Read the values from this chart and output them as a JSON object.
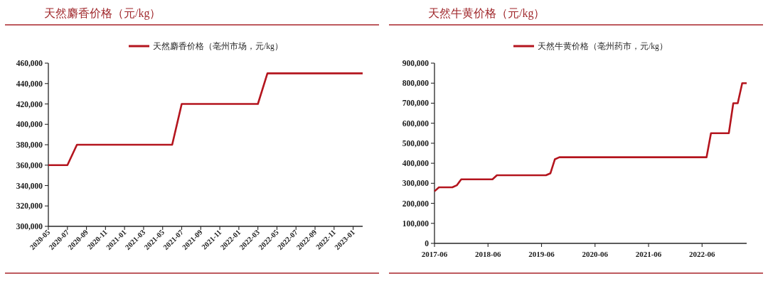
{
  "chart_data": [
    {
      "type": "line",
      "title": "天然麝香价格（元/kg）",
      "legend": "top",
      "x": [
        "2020-05",
        "2020-07",
        "2020-08",
        "2021-06",
        "2021-07",
        "2022-03",
        "2022-04",
        "2023-02"
      ],
      "series": [
        {
          "name": "天然麝香价格（亳州市场，元/kg）",
          "color": "#b4151e",
          "values": [
            360000,
            360000,
            380000,
            380000,
            420000,
            420000,
            450000,
            450000
          ]
        }
      ],
      "xlim": [
        "2020-05",
        "2023-02"
      ],
      "xticks": [
        "2020-05",
        "2020-07",
        "2020-09",
        "2020-11",
        "2021-01",
        "2021-03",
        "2021-05",
        "2021-07",
        "2021-09",
        "2021-11",
        "2022-01",
        "2022-03",
        "2022-05",
        "2022-07",
        "2022-09",
        "2022-11",
        "2023-01"
      ],
      "ylim": [
        300000,
        460000
      ],
      "yticks": [
        {
          "value": 300000,
          "label": "300,000"
        },
        {
          "value": 320000,
          "label": "320,000"
        },
        {
          "value": 340000,
          "label": "340,000"
        },
        {
          "value": 360000,
          "label": "360,000"
        },
        {
          "value": 380000,
          "label": "380,000"
        },
        {
          "value": 400000,
          "label": "400,000"
        },
        {
          "value": 420000,
          "label": "420,000"
        },
        {
          "value": 440000,
          "label": "440,000"
        },
        {
          "value": 460000,
          "label": "460,000"
        }
      ]
    },
    {
      "type": "line",
      "title": "天然牛黄价格（元/kg）",
      "legend": "top",
      "x": [
        "2017-06",
        "2017-07",
        "2017-10",
        "2017-11",
        "2017-12",
        "2018-07",
        "2018-08",
        "2019-07",
        "2019-08",
        "2019-09",
        "2019-10",
        "2022-07",
        "2022-08",
        "2022-12",
        "2023-01",
        "2023-02",
        "2023-03",
        "2023-04"
      ],
      "series": [
        {
          "name": "天然牛黄价格（亳州药市，元/kg）",
          "color": "#b4151e",
          "values": [
            260000,
            280000,
            280000,
            290000,
            320000,
            320000,
            340000,
            340000,
            350000,
            420000,
            430000,
            430000,
            550000,
            550000,
            700000,
            700000,
            800000,
            800000
          ]
        }
      ],
      "xlim": [
        "2017-06",
        "2023-04"
      ],
      "xticks": [
        "2017-06",
        "2018-06",
        "2019-06",
        "2020-06",
        "2021-06",
        "2022-06"
      ],
      "ylim": [
        0,
        900000
      ],
      "yticks": [
        0,
        {
          "value": 100000,
          "label": "100,000"
        },
        {
          "value": 200000,
          "label": "200,000"
        },
        {
          "value": 300000,
          "label": "300,000"
        },
        {
          "value": 400000,
          "label": "400,000"
        },
        {
          "value": 500000,
          "label": "500,000"
        },
        {
          "value": 600000,
          "label": "600,000"
        },
        {
          "value": 700000,
          "label": "700,000"
        },
        {
          "value": 800000,
          "label": "800,000"
        },
        {
          "value": 900000,
          "label": "900,000"
        }
      ]
    }
  ]
}
